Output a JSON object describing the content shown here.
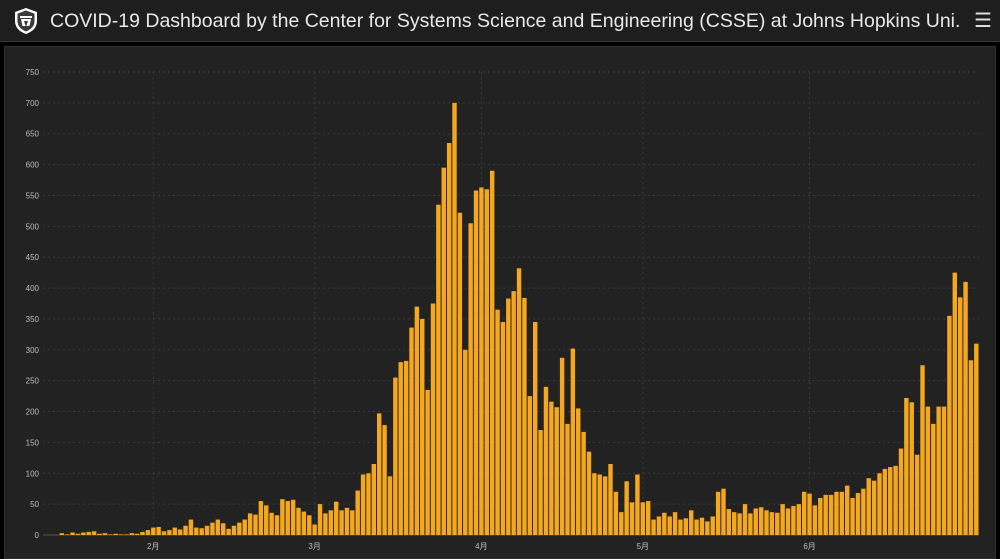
{
  "header": {
    "title": "COVID-19 Dashboard by the Center for Systems Science and Engineering (CSSE) at Johns Hopkins Uni...",
    "logo_icon": "jhu-shield-icon",
    "menu_icon": "hamburger-menu-icon"
  },
  "colors": {
    "bar": "#f5a81e",
    "background": "#222222",
    "grid": "#3a3a3a",
    "text": "#bdbdbd"
  },
  "chart_data": {
    "type": "bar",
    "title": "",
    "xlabel": "",
    "ylabel": "",
    "ylim": [
      0,
      750
    ],
    "yticks": [
      0,
      50,
      100,
      150,
      200,
      250,
      300,
      350,
      400,
      450,
      500,
      550,
      600,
      650,
      700,
      750
    ],
    "xtick_labels": [
      "2月",
      "3月",
      "4月",
      "5月",
      "6月"
    ],
    "xtick_index": [
      20,
      50,
      81,
      111,
      142
    ],
    "grid": true,
    "values": [
      0,
      0,
      0,
      3,
      1,
      4,
      2,
      4,
      5,
      6,
      2,
      3,
      1,
      2,
      1,
      1,
      3,
      2,
      5,
      8,
      12,
      13,
      6,
      8,
      12,
      9,
      15,
      25,
      12,
      11,
      15,
      20,
      25,
      19,
      10,
      15,
      20,
      25,
      35,
      33,
      55,
      48,
      36,
      32,
      58,
      55,
      57,
      44,
      38,
      32,
      17,
      50,
      35,
      40,
      54,
      40,
      44,
      40,
      72,
      98,
      100,
      115,
      197,
      178,
      95,
      255,
      280,
      282,
      336,
      370,
      350,
      235,
      375,
      535,
      595,
      635,
      700,
      522,
      300,
      505,
      558,
      563,
      560,
      590,
      365,
      345,
      383,
      395,
      432,
      384,
      225,
      345,
      170,
      240,
      216,
      207,
      287,
      180,
      302,
      205,
      167,
      135,
      100,
      98,
      95,
      115,
      70,
      37,
      87,
      53,
      98,
      53,
      55,
      25,
      30,
      36,
      30,
      37,
      25,
      27,
      40,
      25,
      28,
      22,
      30,
      70,
      75,
      42,
      37,
      35,
      50,
      35,
      43,
      45,
      40,
      37,
      36,
      50,
      43,
      47,
      50,
      70,
      67,
      48,
      60,
      65,
      65,
      70,
      70,
      80,
      60,
      68,
      75,
      92,
      88,
      100,
      107,
      110,
      112,
      140,
      222,
      215,
      130,
      275,
      208,
      180,
      208,
      208,
      355,
      425,
      385,
      410,
      283,
      310
    ]
  }
}
